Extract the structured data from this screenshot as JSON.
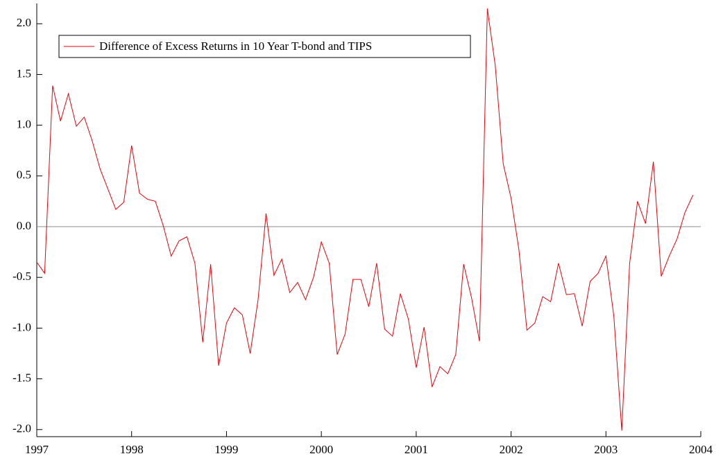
{
  "chart_data": {
    "type": "line",
    "x": [
      1997,
      1997.083,
      1997.167,
      1997.25,
      1997.333,
      1997.417,
      1997.5,
      1997.583,
      1997.667,
      1997.75,
      1997.833,
      1997.917,
      1998,
      1998.083,
      1998.167,
      1998.25,
      1998.333,
      1998.417,
      1998.5,
      1998.583,
      1998.667,
      1998.75,
      1998.833,
      1998.917,
      1999,
      1999.083,
      1999.167,
      1999.25,
      1999.333,
      1999.417,
      1999.5,
      1999.583,
      1999.667,
      1999.75,
      1999.833,
      1999.917,
      2000,
      2000.083,
      2000.167,
      2000.25,
      2000.333,
      2000.417,
      2000.5,
      2000.583,
      2000.667,
      2000.75,
      2000.833,
      2000.917,
      2001,
      2001.083,
      2001.167,
      2001.25,
      2001.333,
      2001.417,
      2001.5,
      2001.583,
      2001.667,
      2001.75,
      2001.833,
      2001.917,
      2002,
      2002.083,
      2002.167,
      2002.25,
      2002.333,
      2002.417,
      2002.5,
      2002.583,
      2002.667,
      2002.75,
      2002.833,
      2002.917,
      2003,
      2003.083,
      2003.167,
      2003.25,
      2003.333,
      2003.417,
      2003.5,
      2003.583,
      2003.667,
      2003.75,
      2003.833,
      2003.917
    ],
    "series": [
      {
        "name": "Difference of Excess Returns in 10 Year T-bond and TIPS",
        "color": "#e8000b",
        "values": [
          -0.35,
          -0.46,
          1.39,
          1.04,
          1.31,
          0.99,
          1.08,
          0.85,
          0.57,
          0.37,
          0.17,
          0.24,
          0.8,
          0.33,
          0.27,
          0.25,
          0.01,
          -0.29,
          -0.14,
          -0.1,
          -0.36,
          -1.14,
          -0.37,
          -1.37,
          -0.95,
          -0.8,
          -0.87,
          -1.25,
          -0.72,
          0.13,
          -0.48,
          -0.32,
          -0.65,
          -0.55,
          -0.72,
          -0.5,
          -0.15,
          -0.36,
          -1.26,
          -1.06,
          -0.52,
          -0.52,
          -0.79,
          -0.36,
          -1.01,
          -1.08,
          -0.66,
          -0.91,
          -1.39,
          -0.99,
          -1.58,
          -1.38,
          -1.45,
          -1.26,
          -0.37,
          -0.7,
          -1.13,
          2.15,
          1.59,
          0.62,
          0.28,
          -0.23,
          -1.02,
          -0.95,
          -0.69,
          -0.74,
          -0.36,
          -0.67,
          -0.66,
          -0.98,
          -0.54,
          -0.46,
          -0.29,
          -0.88,
          -2.01,
          -0.36,
          0.25,
          0.03,
          0.64,
          -0.49,
          -0.29,
          -0.12,
          0.14,
          0.31
        ]
      }
    ],
    "xlim": [
      1997,
      2004
    ],
    "xticks": [
      1997,
      1998,
      1999,
      2000,
      2001,
      2002,
      2003,
      2004
    ],
    "ylim": [
      -2.07,
      2.2
    ],
    "yticks": [
      {
        "value": -2,
        "label": "-2.0"
      },
      {
        "value": -1.5,
        "label": "-1.5"
      },
      {
        "value": -1,
        "label": "-1.0"
      },
      {
        "value": -0.5,
        "label": "-0.5"
      },
      {
        "value": 0,
        "label": "0.0"
      },
      {
        "value": 0.5,
        "label": "0.5"
      },
      {
        "value": 1,
        "label": "1.0"
      },
      {
        "value": 1.5,
        "label": "1.5"
      },
      {
        "value": 2,
        "label": "2.0"
      }
    ],
    "zero_line": true,
    "legend": "upper left"
  }
}
